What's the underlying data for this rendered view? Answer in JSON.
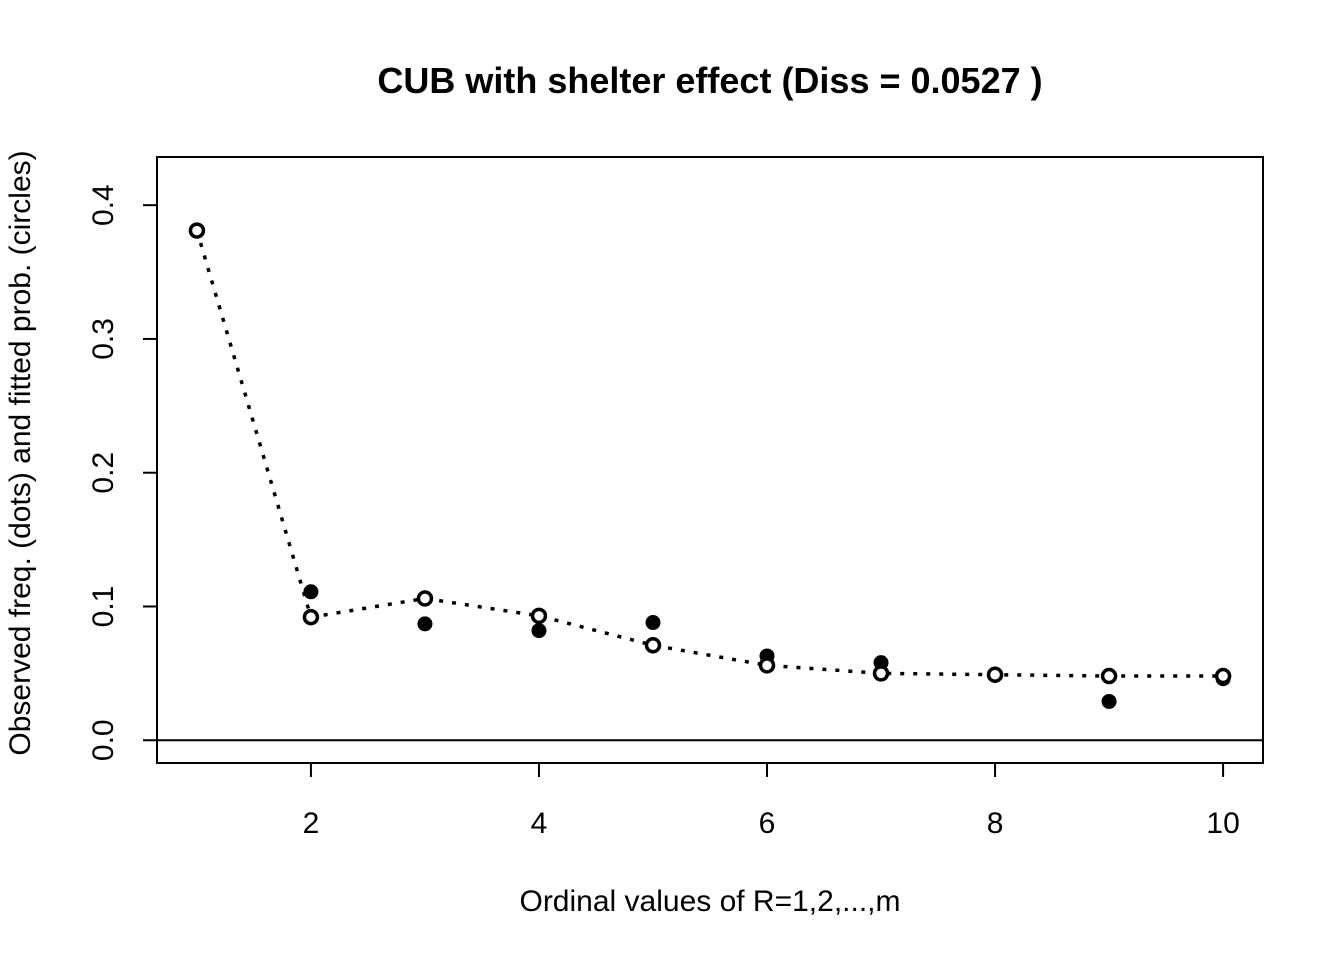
{
  "chart_data": {
    "type": "scatter",
    "title": "CUB with shelter effect  (Diss = 0.0527 )",
    "xlabel": "Ordinal values of R=1,2,...,m",
    "ylabel": "Observed  freq. (dots) and fitted prob. (circles)",
    "x": [
      1,
      2,
      3,
      4,
      5,
      6,
      7,
      8,
      9,
      10
    ],
    "xlim": [
      0.65,
      10.35
    ],
    "ylim": [
      -0.017,
      0.436
    ],
    "x_ticks": [
      2,
      4,
      6,
      8,
      10
    ],
    "y_ticks": [
      0.0,
      0.1,
      0.2,
      0.3,
      0.4
    ],
    "x_tick_labels": [
      "2",
      "4",
      "6",
      "8",
      "10"
    ],
    "y_tick_labels": [
      "0.0",
      "0.1",
      "0.2",
      "0.3",
      "0.4"
    ],
    "reference_line_y": 0,
    "grid": false,
    "legend": "none",
    "series": [
      {
        "marker": "filled-dot",
        "line": "none",
        "values": [
          0.381,
          0.111,
          0.087,
          0.082,
          0.088,
          0.063,
          0.058,
          0.049,
          0.029,
          0.046
        ]
      },
      {
        "marker": "open-circle",
        "line": "dotted",
        "values": [
          0.381,
          0.092,
          0.106,
          0.093,
          0.071,
          0.056,
          0.05,
          0.049,
          0.048,
          0.048
        ]
      }
    ],
    "colors": {
      "ink": "#000000",
      "background": "#ffffff"
    }
  }
}
